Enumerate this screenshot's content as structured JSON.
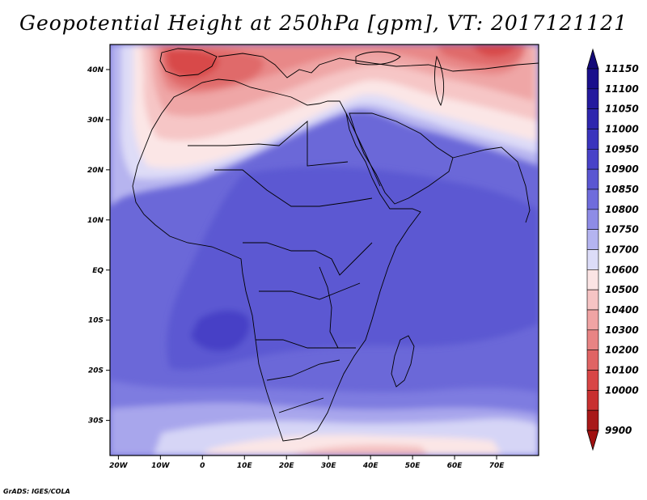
{
  "title": "Geopotential Height at 250hPa [gpm], VT: 2017121121",
  "credit": "GrADS: IGES/COLA",
  "map": {
    "lon_range": [
      -22,
      80
    ],
    "lat_range": [
      -37,
      45
    ],
    "lat_ticks": [
      {
        "lat": 40,
        "label": "40N"
      },
      {
        "lat": 30,
        "label": "30N"
      },
      {
        "lat": 20,
        "label": "20N"
      },
      {
        "lat": 10,
        "label": "10N"
      },
      {
        "lat": 0,
        "label": "EQ"
      },
      {
        "lat": -10,
        "label": "10S"
      },
      {
        "lat": -20,
        "label": "20S"
      },
      {
        "lat": -30,
        "label": "30S"
      }
    ],
    "lon_ticks": [
      {
        "lon": -20,
        "label": "20W"
      },
      {
        "lon": -10,
        "label": "10W"
      },
      {
        "lon": 0,
        "label": "0"
      },
      {
        "lon": 10,
        "label": "10E"
      },
      {
        "lon": 20,
        "label": "20E"
      },
      {
        "lon": 30,
        "label": "30E"
      },
      {
        "lon": 40,
        "label": "40E"
      },
      {
        "lon": 50,
        "label": "50E"
      },
      {
        "lon": 60,
        "label": "60E"
      },
      {
        "lon": 70,
        "label": "70E"
      }
    ]
  },
  "colorbar": {
    "levels": [
      {
        "value": "11150",
        "color": "#1a0f8c"
      },
      {
        "value": "11100",
        "color": "#241a9e"
      },
      {
        "value": "11050",
        "color": "#2e26ae"
      },
      {
        "value": "11000",
        "color": "#3a34bd"
      },
      {
        "value": "10950",
        "color": "#4842c8"
      },
      {
        "value": "10900",
        "color": "#5a56d2"
      },
      {
        "value": "10850",
        "color": "#6f6cdc"
      },
      {
        "value": "10800",
        "color": "#8e8ce6"
      },
      {
        "value": "10750",
        "color": "#b4b4f0"
      },
      {
        "value": "10700",
        "color": "#dcdcf8"
      },
      {
        "value": "10600",
        "color": "#fbe4e4"
      },
      {
        "value": "10500",
        "color": "#f6c4c4"
      },
      {
        "value": "10400",
        "color": "#f0a4a4"
      },
      {
        "value": "10300",
        "color": "#e88484"
      },
      {
        "value": "10200",
        "color": "#e06464"
      },
      {
        "value": "10100",
        "color": "#d84646"
      },
      {
        "value": "10000",
        "color": "#c83030"
      },
      {
        "value": "9900",
        "color": "#a81818"
      }
    ],
    "top_arrow_color": "#140a78",
    "bottom_arrow_color": "#a01010"
  }
}
